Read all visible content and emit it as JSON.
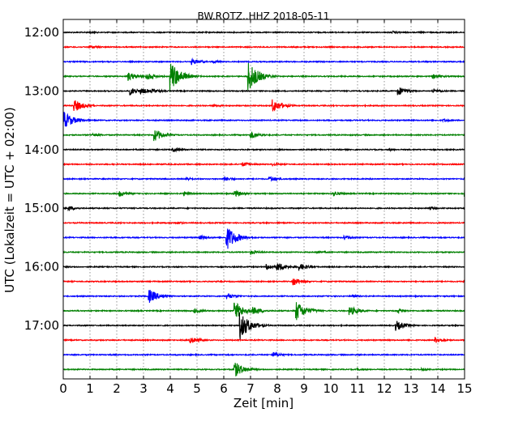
{
  "chart_data": {
    "type": "line",
    "title": "BW.ROTZ..HHZ 2018-05-11",
    "xlabel": "Zeit  [min]",
    "ylabel": "UTC (Lokalzeit = UTC + 02:00)",
    "xlim": [
      0,
      15
    ],
    "x_ticks": [
      "0",
      "1",
      "2",
      "3",
      "4",
      "5",
      "6",
      "7",
      "8",
      "9",
      "10",
      "11",
      "12",
      "13",
      "14",
      "15"
    ],
    "y_ticks": [
      "12:00",
      "13:00",
      "14:00",
      "15:00",
      "16:00",
      "17:00"
    ],
    "grid": true,
    "trace_colors": [
      "#000000",
      "#ff0000",
      "#0000ff",
      "#008000"
    ],
    "traces": [
      {
        "start": "12:00",
        "events": [
          [
            1.0,
            0.15
          ],
          [
            12.3,
            0.2
          ],
          [
            13.3,
            0.1
          ]
        ]
      },
      {
        "start": "12:15",
        "events": [
          [
            1.0,
            0.25
          ],
          [
            10.0,
            0.1
          ]
        ]
      },
      {
        "start": "12:30",
        "events": [
          [
            4.8,
            0.4
          ],
          [
            5.6,
            0.2
          ]
        ]
      },
      {
        "start": "12:45",
        "events": [
          [
            2.4,
            0.6
          ],
          [
            3.1,
            0.5
          ],
          [
            4.0,
            2.0
          ],
          [
            6.9,
            2.0
          ],
          [
            13.8,
            0.3
          ]
        ]
      },
      {
        "start": "13:00",
        "events": [
          [
            2.5,
            0.5
          ],
          [
            2.9,
            0.4
          ],
          [
            3.3,
            0.3
          ],
          [
            12.5,
            0.6
          ],
          [
            13.8,
            0.3
          ]
        ]
      },
      {
        "start": "13:15",
        "events": [
          [
            0.4,
            0.8
          ],
          [
            5.6,
            0.2
          ],
          [
            7.8,
            0.9
          ]
        ]
      },
      {
        "start": "13:30",
        "events": [
          [
            0.0,
            1.2
          ],
          [
            14.2,
            0.2
          ]
        ]
      },
      {
        "start": "13:45",
        "events": [
          [
            1.1,
            0.2
          ],
          [
            3.4,
            0.8
          ],
          [
            7.0,
            0.5
          ],
          [
            15.0,
            0.3
          ]
        ]
      },
      {
        "start": "14:00",
        "events": [
          [
            4.1,
            0.3
          ],
          [
            12.2,
            0.15
          ]
        ]
      },
      {
        "start": "14:15",
        "events": [
          [
            6.7,
            0.3
          ],
          [
            7.8,
            0.2
          ]
        ]
      },
      {
        "start": "14:30",
        "events": [
          [
            4.6,
            0.2
          ],
          [
            6.0,
            0.3
          ],
          [
            7.7,
            0.4
          ],
          [
            15.0,
            0.2
          ]
        ]
      },
      {
        "start": "14:45",
        "events": [
          [
            2.1,
            0.4
          ],
          [
            4.5,
            0.3
          ],
          [
            6.4,
            0.4
          ],
          [
            10.1,
            0.3
          ],
          [
            15.0,
            0.5
          ]
        ]
      },
      {
        "start": "15:00",
        "events": [
          [
            0.2,
            0.3
          ],
          [
            13.7,
            0.2
          ]
        ]
      },
      {
        "start": "15:15",
        "events": [
          [
            4.2,
            0.2
          ]
        ]
      },
      {
        "start": "15:30",
        "events": [
          [
            5.1,
            0.3
          ],
          [
            6.1,
            1.6
          ],
          [
            10.5,
            0.3
          ]
        ]
      },
      {
        "start": "15:45",
        "events": [
          [
            7.0,
            0.3
          ],
          [
            9.5,
            0.2
          ]
        ]
      },
      {
        "start": "16:00",
        "events": [
          [
            7.6,
            0.4
          ],
          [
            8.0,
            0.6
          ],
          [
            8.8,
            0.5
          ]
        ]
      },
      {
        "start": "16:15",
        "events": [
          [
            8.6,
            0.5
          ]
        ]
      },
      {
        "start": "16:30",
        "events": [
          [
            3.2,
            0.9
          ],
          [
            6.1,
            0.4
          ],
          [
            10.8,
            0.2
          ]
        ]
      },
      {
        "start": "16:45",
        "events": [
          [
            4.9,
            0.3
          ],
          [
            6.4,
            1.2
          ],
          [
            7.1,
            0.5
          ],
          [
            8.7,
            1.3
          ],
          [
            10.7,
            0.6
          ],
          [
            12.5,
            0.3
          ]
        ]
      },
      {
        "start": "17:00",
        "events": [
          [
            6.6,
            1.8
          ],
          [
            12.4,
            0.7
          ]
        ]
      },
      {
        "start": "17:15",
        "events": [
          [
            4.7,
            0.5
          ],
          [
            13.9,
            0.4
          ]
        ]
      },
      {
        "start": "17:30",
        "events": [
          [
            4.2,
            0.1
          ],
          [
            7.8,
            0.4
          ]
        ]
      },
      {
        "start": "17:45",
        "events": [
          [
            6.4,
            1.0
          ],
          [
            11.0,
            0.15
          ],
          [
            13.4,
            0.15
          ]
        ]
      }
    ]
  }
}
